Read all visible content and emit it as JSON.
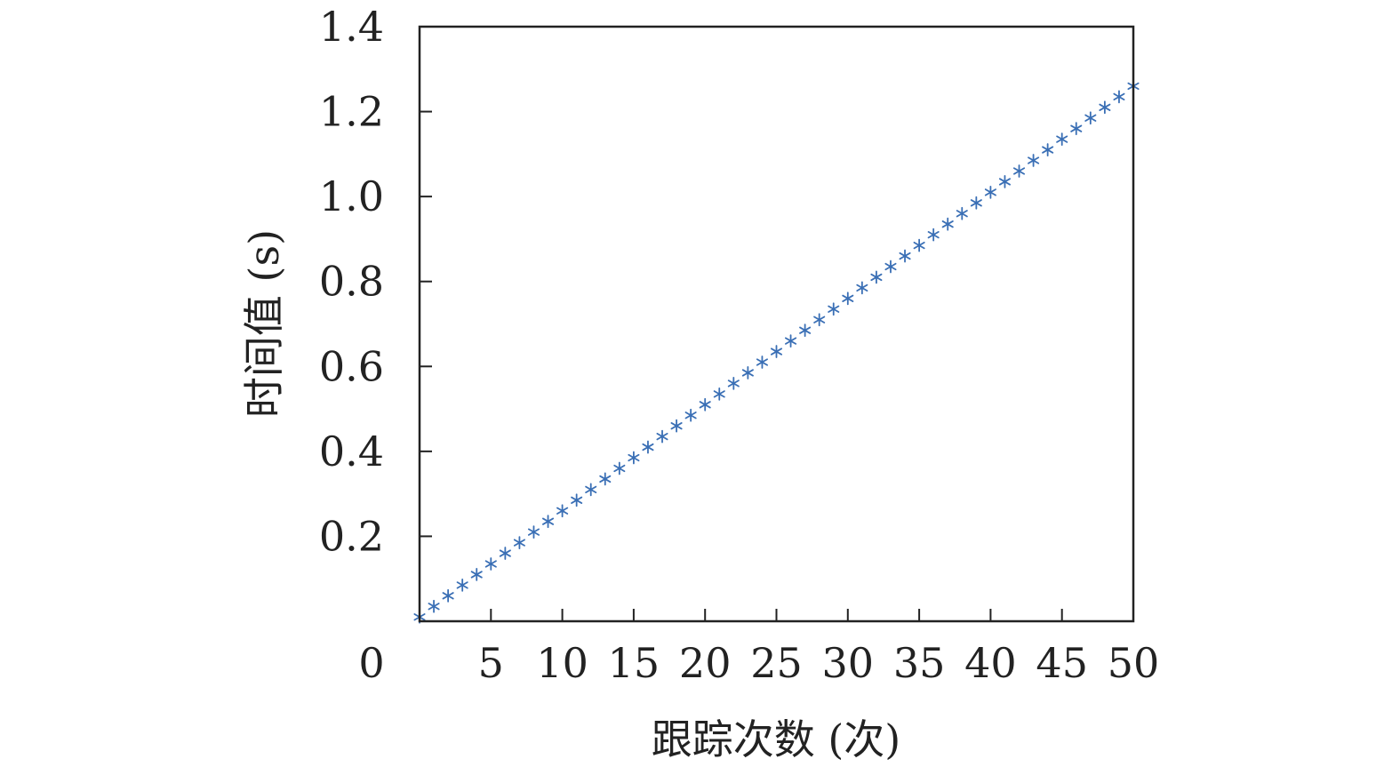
{
  "chart_data": {
    "type": "scatter",
    "title": "",
    "xlabel": "跟踪次数 (次)",
    "ylabel": "时间值 (s)",
    "xlim": [
      0,
      50
    ],
    "ylim": [
      0,
      1.4
    ],
    "origin_label": "0",
    "xticks": [
      5,
      10,
      15,
      20,
      25,
      30,
      35,
      40,
      45,
      50
    ],
    "xtick_labels": [
      "5",
      "10",
      "15",
      "20",
      "25",
      "30",
      "35",
      "40",
      "45",
      "50"
    ],
    "yticks": [
      0.2,
      0.4,
      0.6,
      0.8,
      1.0,
      1.2,
      1.4
    ],
    "ytick_labels": [
      "0.2",
      "0.4",
      "0.6",
      "0.8",
      "1.0",
      "1.2",
      "1.4"
    ],
    "marker": "asterisk",
    "grid": false,
    "series": [
      {
        "color": "#3a6fb5",
        "x": [
          0,
          1,
          2,
          3,
          4,
          5,
          6,
          7,
          8,
          9,
          10,
          11,
          12,
          13,
          14,
          15,
          16,
          17,
          18,
          19,
          20,
          21,
          22,
          23,
          24,
          25,
          26,
          27,
          28,
          29,
          30,
          31,
          32,
          33,
          34,
          35,
          36,
          37,
          38,
          39,
          40,
          41,
          42,
          43,
          44,
          45,
          46,
          47,
          48,
          49,
          50
        ],
        "y": [
          0.01,
          0.035,
          0.06,
          0.085,
          0.11,
          0.135,
          0.16,
          0.185,
          0.21,
          0.235,
          0.26,
          0.285,
          0.31,
          0.335,
          0.36,
          0.385,
          0.41,
          0.435,
          0.46,
          0.485,
          0.51,
          0.535,
          0.56,
          0.585,
          0.61,
          0.635,
          0.66,
          0.685,
          0.71,
          0.735,
          0.76,
          0.785,
          0.81,
          0.835,
          0.86,
          0.885,
          0.91,
          0.935,
          0.96,
          0.985,
          1.01,
          1.035,
          1.06,
          1.085,
          1.11,
          1.135,
          1.16,
          1.185,
          1.21,
          1.235,
          1.26
        ]
      }
    ]
  }
}
